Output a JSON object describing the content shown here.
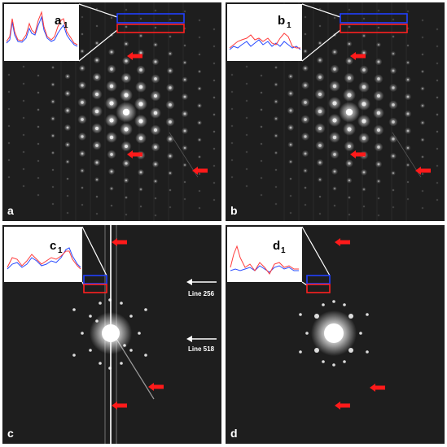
{
  "panels": [
    {
      "id": "a",
      "letter": "a",
      "inset_label": "a",
      "inset_sub": "1"
    },
    {
      "id": "b",
      "letter": "b",
      "inset_label": "b",
      "inset_sub": "1"
    },
    {
      "id": "c",
      "letter": "c",
      "inset_label": "c",
      "inset_sub": "1"
    },
    {
      "id": "d",
      "letter": "d",
      "inset_label": "d",
      "inset_sub": "1"
    }
  ],
  "line_labels": {
    "first": "Line 256",
    "second": "Line 518"
  },
  "colors": {
    "profile_red": "#ff3b3b",
    "profile_blue": "#2a4bff",
    "box_red": "#ff2020",
    "box_blue": "#2040ff",
    "arrow": "#ff1a1a",
    "background": "#1e1e1e"
  }
}
